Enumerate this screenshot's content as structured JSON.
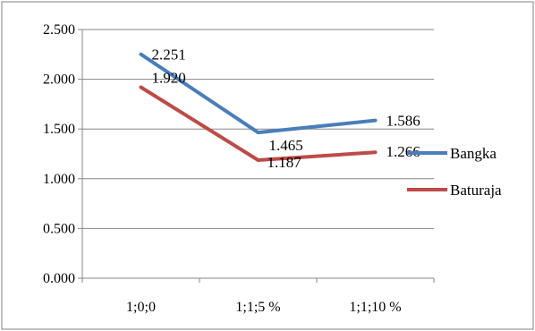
{
  "chart_data": {
    "type": "line",
    "title": "",
    "xlabel": "",
    "ylabel": "",
    "categories": [
      "1;0;0",
      "1;1;5 %",
      "1;1;10 %"
    ],
    "ylim": [
      0,
      2.5
    ],
    "yticks": [
      "0.000",
      "0.500",
      "1.000",
      "1.500",
      "2.000",
      "2.500"
    ],
    "grid": true,
    "legend_position": "right",
    "series": [
      {
        "name": "Bangka",
        "values": [
          2.251,
          1.465,
          1.586
        ],
        "labels": [
          "2.251",
          "1.465",
          "1.586"
        ],
        "color": "#4a7ebb"
      },
      {
        "name": "Baturaja",
        "values": [
          1.92,
          1.187,
          1.266
        ],
        "labels": [
          "1.920",
          "1.187",
          "1.266"
        ],
        "color": "#be4b48"
      }
    ]
  }
}
